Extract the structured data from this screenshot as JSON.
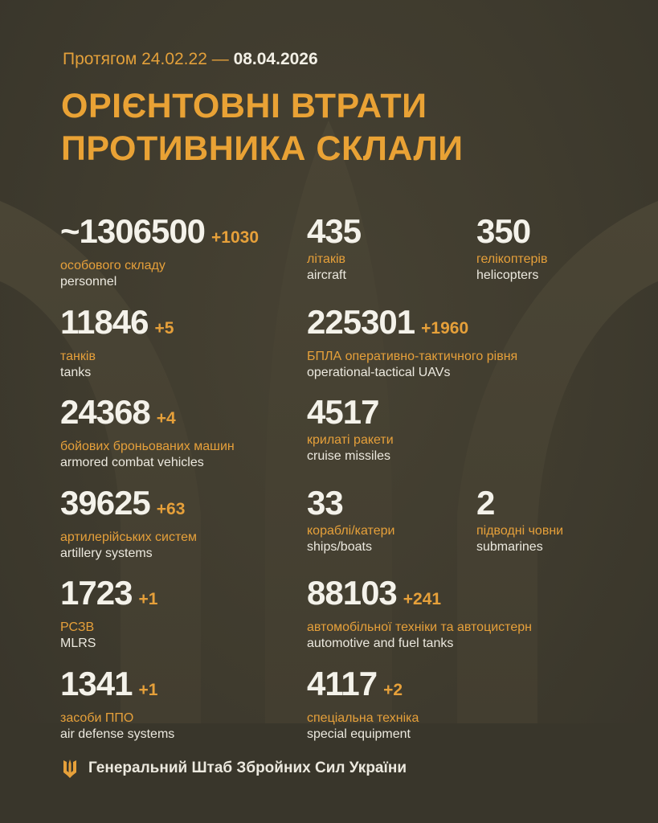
{
  "header": {
    "period_prefix": "Протягом 24.02.22 —",
    "period_end": "08.04.2026",
    "title_line1": "ОРІЄНТОВНІ ВТРАТИ",
    "title_line2": "ПРОТИВНИКА СКЛАЛИ"
  },
  "colors": {
    "background": "#3e3a2d",
    "accent": "#e6a03a",
    "text": "#f4f2ea"
  },
  "stats": [
    {
      "value": "~1306500",
      "delta": "+1030",
      "ua": "особового складу",
      "en": "personnel"
    },
    {
      "value": "435",
      "delta": "",
      "ua": "літаків",
      "en": "aircraft"
    },
    {
      "value": "350",
      "delta": "",
      "ua": "гелікоптерів",
      "en": "helicopters"
    },
    {
      "value": "11846",
      "delta": "+5",
      "ua": "танків",
      "en": "tanks"
    },
    {
      "value": "225301",
      "delta": "+1960",
      "ua": "БПЛА оперативно-тактичного рівня",
      "en": "operational-tactical UAVs"
    },
    {
      "value": "24368",
      "delta": "+4",
      "ua": "бойових броньованих машин",
      "en": "armored combat vehicles"
    },
    {
      "value": "4517",
      "delta": "",
      "ua": "крилаті ракети",
      "en": "cruise missiles"
    },
    {
      "value": "39625",
      "delta": "+63",
      "ua": "артилерійських систем",
      "en": "artillery systems"
    },
    {
      "value": "33",
      "delta": "",
      "ua": "кораблі/катери",
      "en": "ships/boats"
    },
    {
      "value": "2",
      "delta": "",
      "ua": "підводні човни",
      "en": "submarines"
    },
    {
      "value": "1723",
      "delta": "+1",
      "ua": "РСЗВ",
      "en": "MLRS"
    },
    {
      "value": "88103",
      "delta": "+241",
      "ua": "автомобільної техніки та автоцистерн",
      "en": "automotive and fuel tanks"
    },
    {
      "value": "1341",
      "delta": "+1",
      "ua": "засоби ППО",
      "en": "air defense systems"
    },
    {
      "value": "4117",
      "delta": "+2",
      "ua": "спеціальна техніка",
      "en": "special equipment"
    }
  ],
  "footer": {
    "icon": "trident-icon",
    "text": "Генеральний Штаб Збройних Сил України"
  }
}
